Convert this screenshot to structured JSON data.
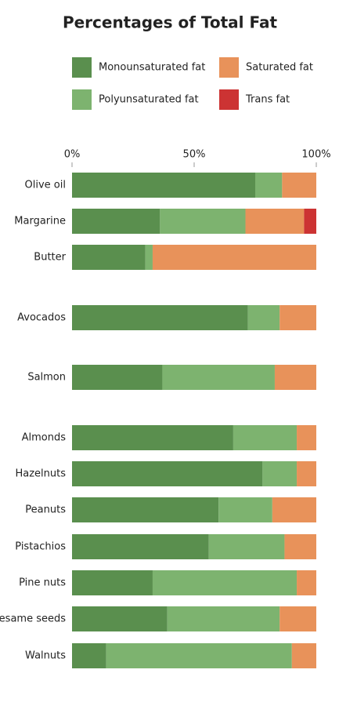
{
  "chart_data": {
    "type": "stacked-bar-horizontal",
    "title": "Percentages of Total Fat",
    "categories": [
      "Olive oil",
      "Margarine",
      "Butter",
      "Avocados",
      "Salmon",
      "Almonds",
      "Hazelnuts",
      "Peanuts",
      "Pistachios",
      "Pine nuts",
      "Sesame seeds",
      "Walnuts"
    ],
    "series": [
      {
        "name": "Monounsaturated fat",
        "color": "#5a8f4e",
        "values": [
          75,
          36,
          30,
          72,
          37,
          66,
          78,
          60,
          56,
          33,
          39,
          14
        ]
      },
      {
        "name": "Polyunsaturated fat",
        "color": "#7db36f",
        "values": [
          11,
          35,
          3,
          13,
          46,
          26,
          14,
          22,
          31,
          59,
          46,
          76
        ]
      },
      {
        "name": "Saturated fat",
        "color": "#e8925a",
        "values": [
          14,
          24,
          67,
          15,
          17,
          8,
          8,
          18,
          13,
          8,
          15,
          10
        ]
      },
      {
        "name": "Trans fat",
        "color": "#cc3333",
        "values": [
          0,
          5,
          0,
          0,
          0,
          0,
          0,
          0,
          0,
          0,
          0,
          0
        ]
      }
    ],
    "xlim": [
      0,
      100
    ],
    "xticks": [
      {
        "value": 0,
        "label": "0%"
      },
      {
        "value": 50,
        "label": "50%"
      },
      {
        "value": 100,
        "label": "100%"
      }
    ]
  }
}
